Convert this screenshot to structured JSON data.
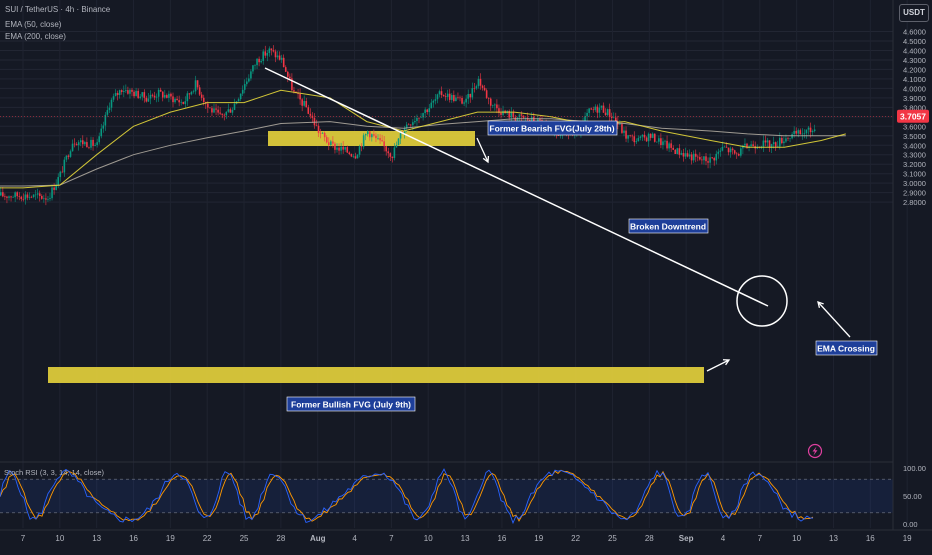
{
  "header": {
    "title": "SUI / TetherUS · 4h · Binance",
    "indicator1": "EMA (50, close)",
    "indicator2": "EMA (200, close)",
    "currency": "USDT"
  },
  "price_label": "3.7057",
  "chart_data": {
    "type": "candlestick",
    "title": "SUI / TetherUS · 4h · Binance",
    "y_ticks": [
      "4.6000",
      "4.5000",
      "4.4000",
      "4.3000",
      "4.2000",
      "4.1000",
      "4.0000",
      "3.9000",
      "3.8000",
      "3.7000",
      "3.6000",
      "3.5000",
      "3.4000",
      "3.3000",
      "3.2000",
      "3.1000",
      "3.0000",
      "2.9000",
      "2.8000"
    ],
    "ylim": [
      2.78,
      4.65
    ],
    "x_ticks": [
      "7",
      "10",
      "13",
      "16",
      "19",
      "22",
      "25",
      "28",
      "Aug",
      "4",
      "7",
      "10",
      "13",
      "16",
      "19",
      "22",
      "25",
      "28",
      "Sep",
      "4",
      "7",
      "10",
      "13",
      "16",
      "19"
    ],
    "current_price": 3.7057,
    "price_path": [
      [
        "Jul 7",
        2.87
      ],
      [
        "Jul 9",
        2.85
      ],
      [
        "Jul 10",
        3.1
      ],
      [
        "Jul 11",
        3.45
      ],
      [
        "Jul 13",
        3.4
      ],
      [
        "Jul 14",
        3.85
      ],
      [
        "Jul 15",
        4.0
      ],
      [
        "Jul 17",
        3.9
      ],
      [
        "Jul 18",
        3.95
      ],
      [
        "Jul 20",
        3.85
      ],
      [
        "Jul 21",
        4.05
      ],
      [
        "Jul 22",
        3.8
      ],
      [
        "Jul 23",
        3.7
      ],
      [
        "Jul 24",
        3.8
      ],
      [
        "Jul 25",
        4.05
      ],
      [
        "Jul 26",
        4.3
      ],
      [
        "Jul 27",
        4.4
      ],
      [
        "Jul 28",
        4.3
      ],
      [
        "Jul 29",
        3.95
      ],
      [
        "Jul 30",
        3.8
      ],
      [
        "Jul 31",
        3.55
      ],
      [
        "Aug 1",
        3.4
      ],
      [
        "Aug 3",
        3.3
      ],
      [
        "Aug 4",
        3.55
      ],
      [
        "Aug 6",
        3.3
      ],
      [
        "Aug 7",
        3.6
      ],
      [
        "Aug 9",
        3.8
      ],
      [
        "Aug 10",
        3.95
      ],
      [
        "Aug 11",
        3.9
      ],
      [
        "Aug 12",
        3.85
      ],
      [
        "Aug 13",
        4.1
      ],
      [
        "Aug 14",
        3.85
      ],
      [
        "Aug 15",
        3.75
      ],
      [
        "Aug 16",
        3.7
      ],
      [
        "Aug 18",
        3.65
      ],
      [
        "Aug 19",
        3.5
      ],
      [
        "Aug 20",
        3.55
      ],
      [
        "Aug 21",
        3.5
      ],
      [
        "Aug 22",
        3.75
      ],
      [
        "Aug 23",
        3.8
      ],
      [
        "Aug 24",
        3.7
      ],
      [
        "Aug 25",
        3.5
      ],
      [
        "Aug 26",
        3.45
      ],
      [
        "Aug 27",
        3.5
      ],
      [
        "Aug 29",
        3.35
      ],
      [
        "Aug 30",
        3.3
      ],
      [
        "Aug 31",
        3.25
      ],
      [
        "Sep 1",
        3.25
      ],
      [
        "Sep 2",
        3.38
      ],
      [
        "Sep 3",
        3.3
      ],
      [
        "Sep 4",
        3.4
      ],
      [
        "Sep 5",
        3.42
      ],
      [
        "Sep 6",
        3.4
      ],
      [
        "Sep 7",
        3.48
      ],
      [
        "Sep 8",
        3.52
      ],
      [
        "Sep 9",
        3.55
      ],
      [
        "Sep 10",
        3.6
      ],
      [
        "Sep 11",
        3.65
      ],
      [
        "Sep 12",
        3.7
      ]
    ],
    "ema50": [
      [
        "Jul 7",
        2.95
      ],
      [
        "Jul 10",
        2.98
      ],
      [
        "Jul 13",
        3.3
      ],
      [
        "Jul 16",
        3.6
      ],
      [
        "Jul 19",
        3.75
      ],
      [
        "Jul 22",
        3.85
      ],
      [
        "Jul 25",
        3.85
      ],
      [
        "Jul 28",
        3.98
      ],
      [
        "Aug 1",
        3.9
      ],
      [
        "Aug 4",
        3.65
      ],
      [
        "Aug 7",
        3.55
      ],
      [
        "Aug 10",
        3.65
      ],
      [
        "Aug 13",
        3.75
      ],
      [
        "Aug 16",
        3.75
      ],
      [
        "Aug 19",
        3.7
      ],
      [
        "Aug 22",
        3.62
      ],
      [
        "Aug 25",
        3.65
      ],
      [
        "Aug 28",
        3.55
      ],
      [
        "Sep 1",
        3.45
      ],
      [
        "Sep 4",
        3.38
      ],
      [
        "Sep 7",
        3.38
      ],
      [
        "Sep 10",
        3.45
      ],
      [
        "Sep 12",
        3.52
      ]
    ],
    "ema200": [
      [
        "Jul 7",
        2.97
      ],
      [
        "Jul 10",
        2.98
      ],
      [
        "Jul 13",
        3.15
      ],
      [
        "Jul 16",
        3.3
      ],
      [
        "Jul 19",
        3.4
      ],
      [
        "Jul 22",
        3.48
      ],
      [
        "Jul 25",
        3.55
      ],
      [
        "Jul 28",
        3.63
      ],
      [
        "Aug 1",
        3.65
      ],
      [
        "Aug 4",
        3.6
      ],
      [
        "Aug 7",
        3.58
      ],
      [
        "Aug 10",
        3.62
      ],
      [
        "Aug 13",
        3.65
      ],
      [
        "Aug 16",
        3.68
      ],
      [
        "Aug 19",
        3.68
      ],
      [
        "Aug 22",
        3.65
      ],
      [
        "Aug 25",
        3.63
      ],
      [
        "Aug 28",
        3.58
      ],
      [
        "Sep 1",
        3.55
      ],
      [
        "Sep 4",
        3.52
      ],
      [
        "Sep 7",
        3.5
      ],
      [
        "Sep 10",
        3.5
      ],
      [
        "Sep 12",
        3.5
      ]
    ],
    "downtrend_line": {
      "from": [
        "Jul 28",
        4.43
      ],
      "to": [
        "Sep 8",
        3.5
      ]
    },
    "zones": [
      {
        "label": "Former Bearish FVG(July 28th)",
        "x_from": "Jul 28",
        "x_to": "Aug 14",
        "y_from": 4.12,
        "y_to": 4.17
      },
      {
        "label": "Former Bullish FVG (July 9th)",
        "x_from": "Jul 10",
        "x_to": "Sep 3",
        "y_from": 3.12,
        "y_to": 3.17
      }
    ],
    "annotations": [
      "Former Bearish FVG(July 28th)",
      "Broken Downtrend",
      "Former Bullish FVG (July 9th)",
      "EMA Crossing"
    ],
    "stoch_rsi": {
      "label": "Stoch RSI (3, 3, 14, 14, close)",
      "ticks": [
        "100.00",
        "50.00",
        "0.00"
      ],
      "levels": [
        80,
        20
      ]
    }
  }
}
